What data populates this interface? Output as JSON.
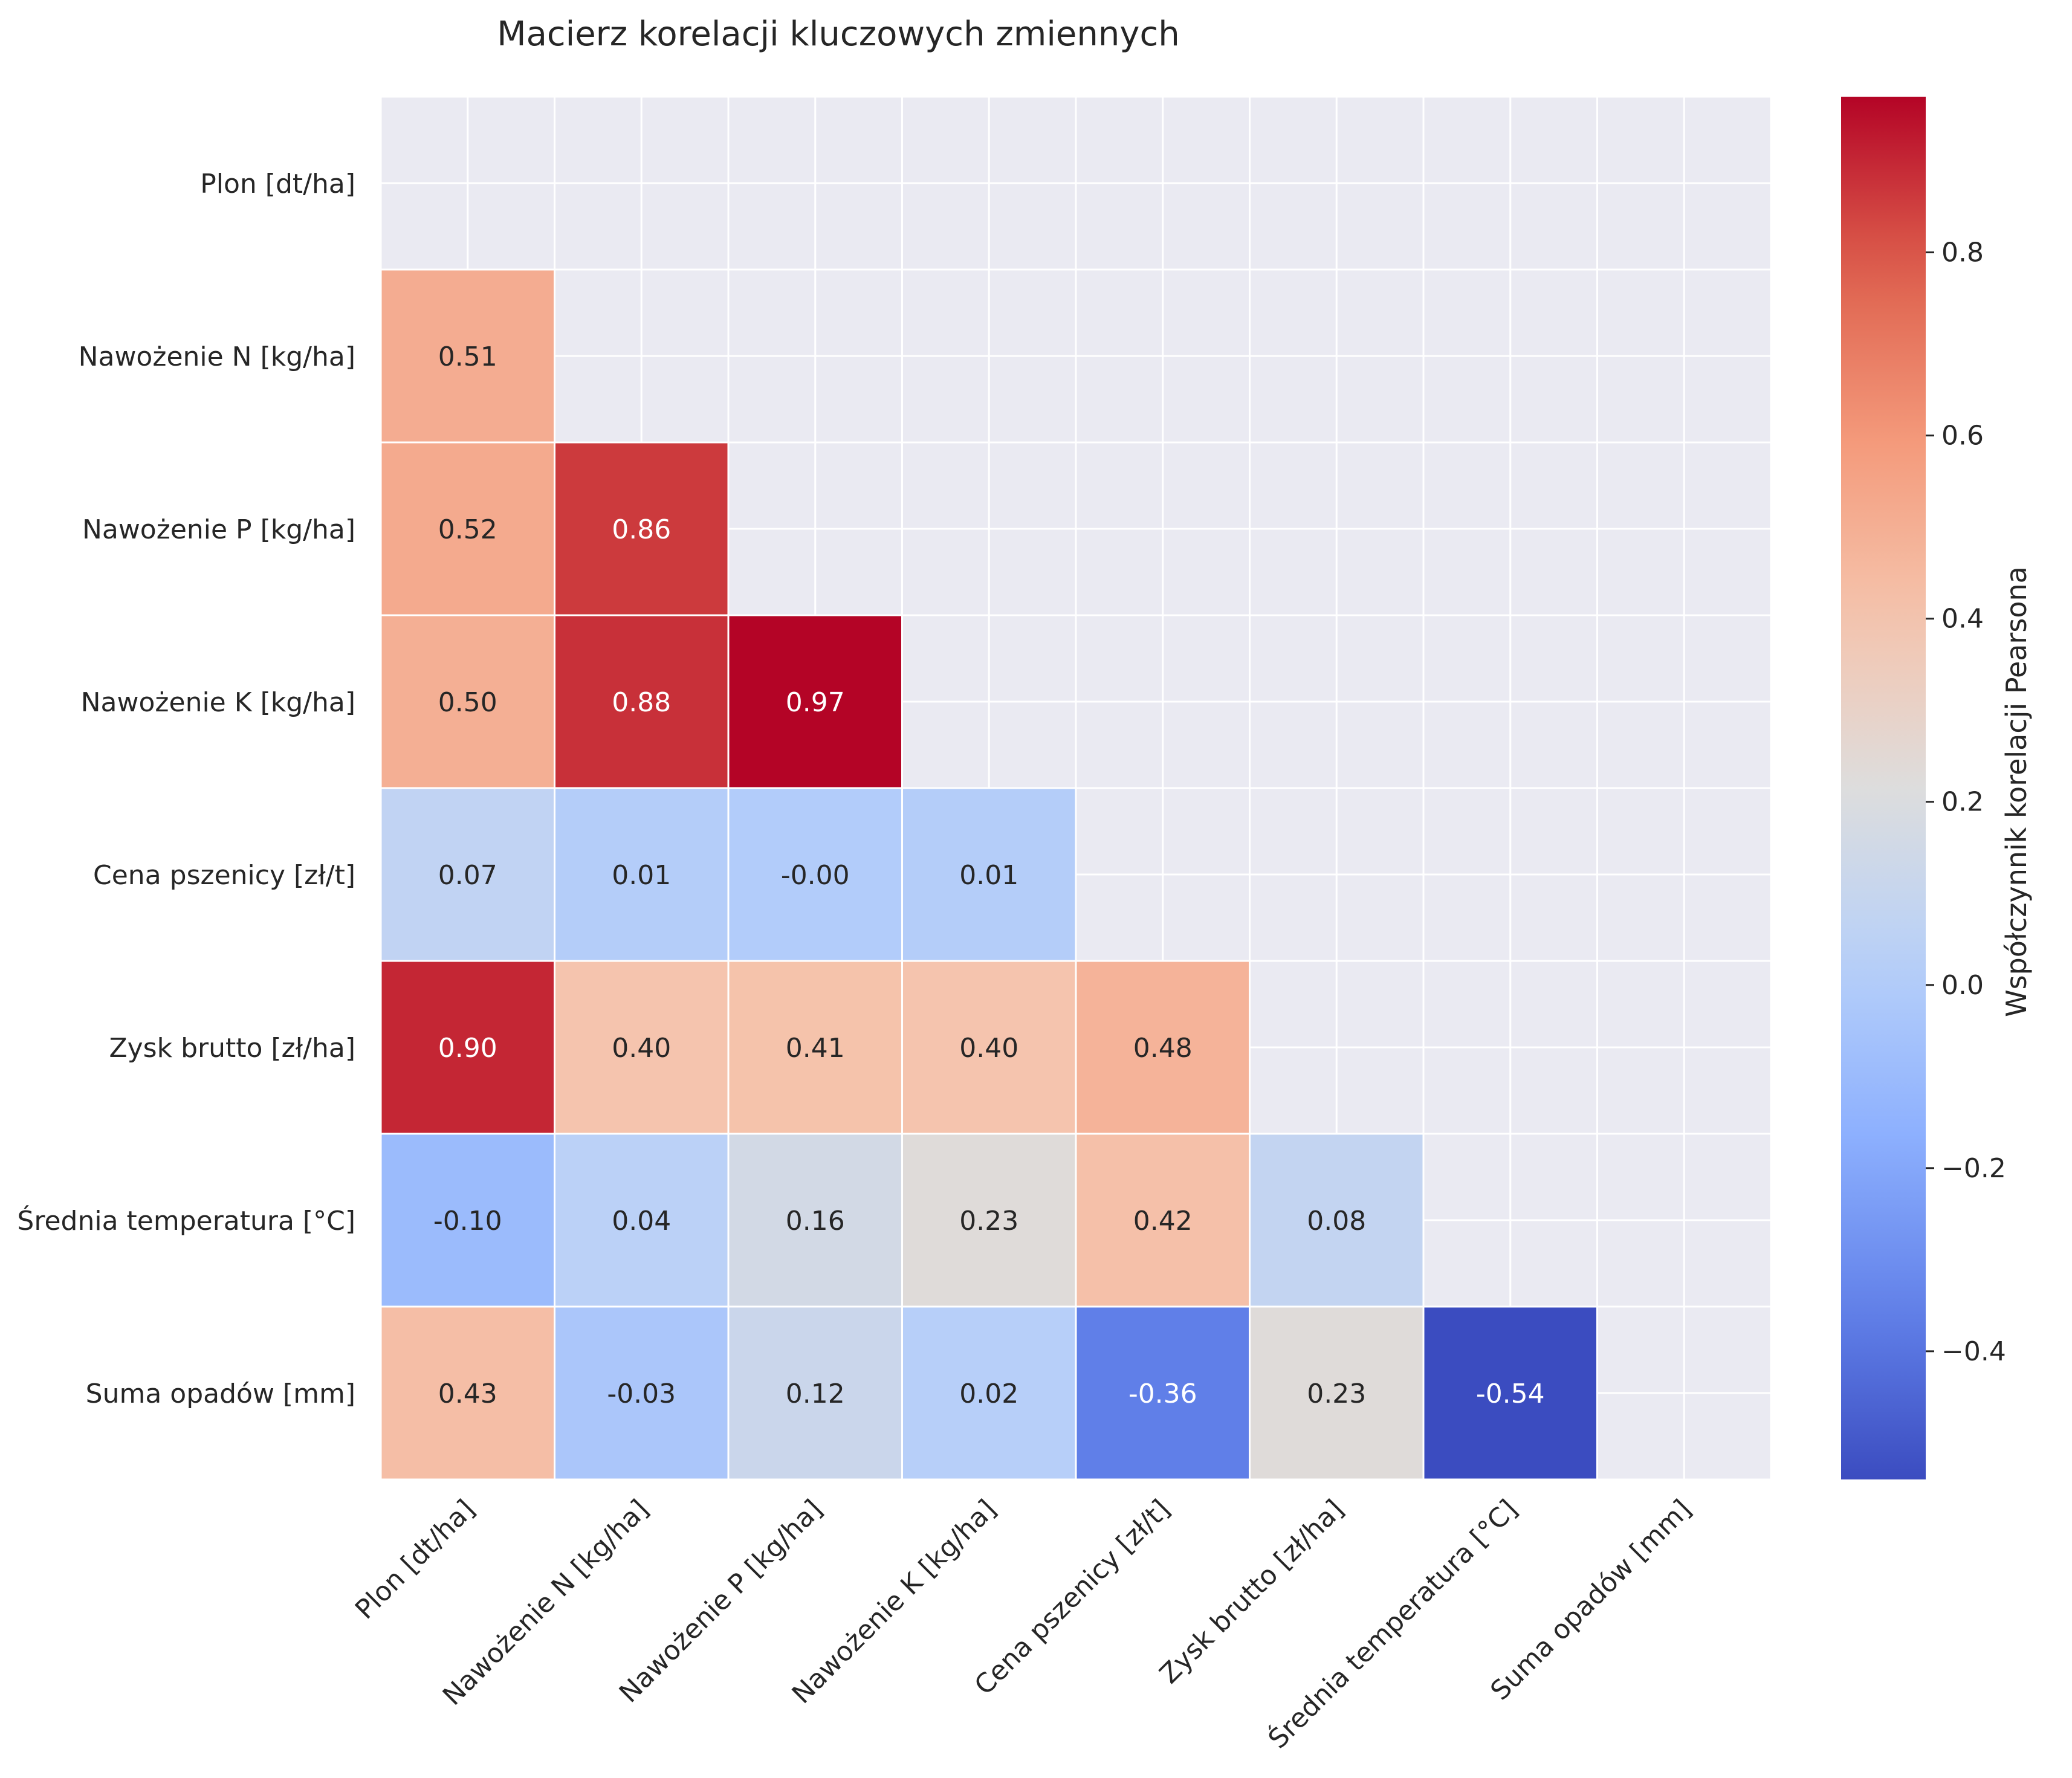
{
  "chart_data": {
    "type": "heatmap",
    "title": "Macierz korelacji kluczowych zmiennych",
    "variables": [
      "Plon [dt/ha]",
      "Nawożenie N [kg/ha]",
      "Nawożenie P [kg/ha]",
      "Nawożenie K [kg/ha]",
      "Cena pszenicy [zł/t]",
      "Zysk brutto [zł/ha]",
      "Średnia temperatura [°C]",
      "Suma opadów [mm]"
    ],
    "matrix_lower": [
      [],
      [
        0.51
      ],
      [
        0.52,
        0.86
      ],
      [
        0.5,
        0.88,
        0.97
      ],
      [
        0.07,
        0.01,
        -0.0,
        0.01
      ],
      [
        0.9,
        0.4,
        0.41,
        0.4,
        0.48
      ],
      [
        -0.1,
        0.04,
        0.16,
        0.23,
        0.42,
        0.08
      ],
      [
        0.43,
        -0.03,
        0.12,
        0.02,
        -0.36,
        0.23,
        -0.54
      ]
    ],
    "value_labels": [
      [],
      [
        "0.51"
      ],
      [
        "0.52",
        "0.86"
      ],
      [
        "0.50",
        "0.88",
        "0.97"
      ],
      [
        "0.07",
        "0.01",
        "-0.00",
        "0.01"
      ],
      [
        "0.90",
        "0.40",
        "0.41",
        "0.40",
        "0.48"
      ],
      [
        "-0.10",
        "0.04",
        "0.16",
        "0.23",
        "0.42",
        "0.08"
      ],
      [
        "0.43",
        "-0.03",
        "0.12",
        "0.02",
        "-0.36",
        "0.23",
        "-0.54"
      ]
    ],
    "mask": "upper-triangle-and-diagonal",
    "colormap": "coolwarm",
    "vmin": -0.54,
    "vmax": 0.97,
    "colorbar": {
      "label": "Współczynnik korelacji Pearsona",
      "ticks": [
        -0.4,
        -0.2,
        0.0,
        0.2,
        0.4,
        0.6,
        0.8
      ],
      "tick_labels": [
        "−0.4",
        "−0.2",
        "0.0",
        "0.2",
        "0.4",
        "0.6",
        "0.8"
      ]
    },
    "grid": true,
    "colors": {
      "background": "#eaeaf2",
      "grid": "#ffffff",
      "text_dark": "#262626",
      "text_light": "#ffffff"
    }
  }
}
